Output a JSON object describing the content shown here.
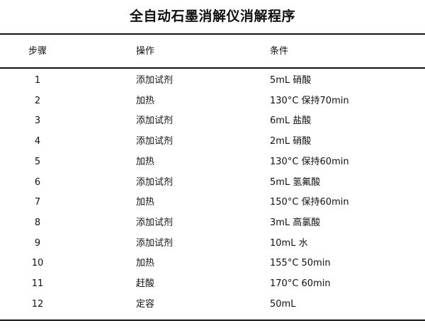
{
  "title": "全自动石墨消解仪消解程序",
  "headers": [
    "步骤",
    "操作",
    "条件"
  ],
  "rows": [
    [
      "1",
      "添加试剂",
      "5mL 硝酸"
    ],
    [
      "2",
      "加热",
      "130°C 保持70min"
    ],
    [
      "3",
      "添加试剂",
      "6mL 盐酸"
    ],
    [
      "4",
      "添加试剂",
      "2mL 硝酸"
    ],
    [
      "5",
      "加热",
      "130°C 保持60min"
    ],
    [
      "6",
      "添加试剂",
      "5mL 氢氟酸"
    ],
    [
      "7",
      "加热",
      "150°C 保持60min"
    ],
    [
      "8",
      "添加试剂",
      "3mL 高氯酸"
    ],
    [
      "9",
      "添加试剂",
      "10mL 水"
    ],
    [
      "10",
      "加热",
      "155°C 50min"
    ],
    [
      "11",
      "赶酸",
      "170°C 60min"
    ],
    [
      "12",
      "定容",
      "50mL"
    ]
  ]
}
